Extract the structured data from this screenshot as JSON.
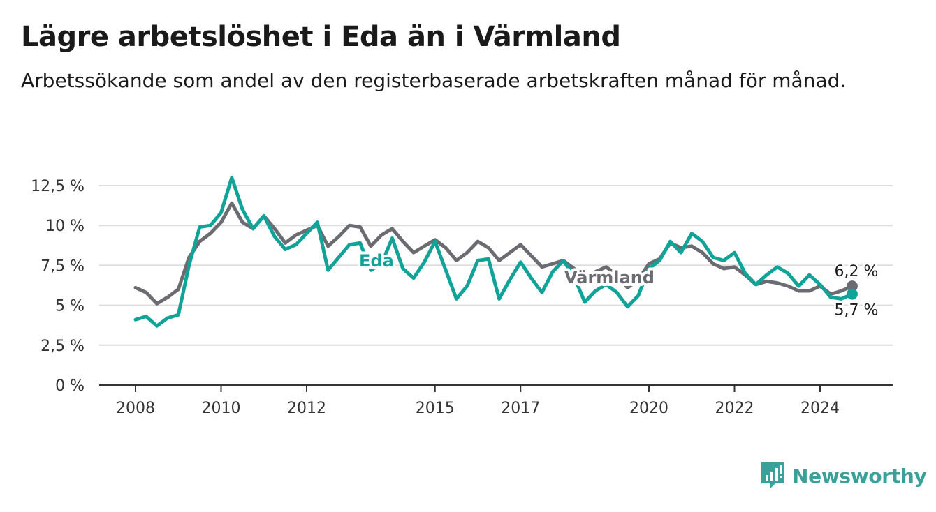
{
  "header": {
    "title": "Lägre arbetslöshet i Eda än i Värmland",
    "subtitle": "Arbetssökande som andel av den registerbaserade arbetskraften månad för månad."
  },
  "brand": {
    "name": "Newsworthy",
    "icon": "newsworthy-logo-icon",
    "color": "#3aa09a"
  },
  "chart_data": {
    "type": "line",
    "title": "Lägre arbetslöshet i Eda än i Värmland",
    "subtitle": "Arbetssökande som andel av den registerbaserade arbetskraften månad för månad.",
    "xlabel": "",
    "ylabel": "",
    "ylim": [
      0,
      12.5
    ],
    "yticks": [
      0,
      2.5,
      5,
      7.5,
      10,
      12.5
    ],
    "ytick_labels": [
      "0 %",
      "2,5 %",
      "5 %",
      "7,5 %",
      "10 %",
      "12,5 %"
    ],
    "xticks": [
      2008,
      2010,
      2012,
      2015,
      2017,
      2020,
      2022,
      2024
    ],
    "xtick_labels": [
      "2008",
      "2010",
      "2012",
      "2015",
      "2017",
      "2020",
      "2022",
      "2024"
    ],
    "xlim": [
      2008,
      2025.75
    ],
    "grid": true,
    "legend": "inline labels",
    "end_labels": {
      "Värmland": "6,2 %",
      "Eda": "5,7 %"
    },
    "series": [
      {
        "name": "Värmland",
        "color": "#6b6b72",
        "x": [
          2008.0,
          2008.25,
          2008.5,
          2008.75,
          2009.0,
          2009.25,
          2009.5,
          2009.75,
          2010.0,
          2010.25,
          2010.5,
          2010.75,
          2011.0,
          2011.25,
          2011.5,
          2011.75,
          2012.0,
          2012.25,
          2012.5,
          2012.75,
          2013.0,
          2013.25,
          2013.5,
          2013.75,
          2014.0,
          2014.25,
          2014.5,
          2014.75,
          2015.0,
          2015.25,
          2015.5,
          2015.75,
          2016.0,
          2016.25,
          2016.5,
          2016.75,
          2017.0,
          2017.25,
          2017.5,
          2017.75,
          2018.0,
          2018.25,
          2018.5,
          2018.75,
          2019.0,
          2019.25,
          2019.5,
          2019.75,
          2020.0,
          2020.25,
          2020.5,
          2020.75,
          2021.0,
          2021.25,
          2021.5,
          2021.75,
          2022.0,
          2022.25,
          2022.5,
          2022.75,
          2023.0,
          2023.25,
          2023.5,
          2023.75,
          2024.0,
          2024.25,
          2024.5,
          2024.75
        ],
        "y": [
          6.1,
          5.8,
          5.1,
          5.5,
          6.0,
          8.0,
          9.0,
          9.5,
          10.2,
          11.4,
          10.2,
          9.8,
          10.6,
          9.8,
          8.9,
          9.4,
          9.7,
          10.0,
          8.7,
          9.3,
          10.0,
          9.9,
          8.7,
          9.4,
          9.8,
          9.0,
          8.3,
          8.7,
          9.1,
          8.6,
          7.8,
          8.3,
          9.0,
          8.6,
          7.8,
          8.3,
          8.8,
          8.1,
          7.4,
          7.6,
          7.8,
          7.3,
          6.7,
          7.1,
          7.4,
          6.9,
          6.1,
          6.6,
          7.6,
          7.9,
          8.9,
          8.6,
          8.7,
          8.3,
          7.6,
          7.3,
          7.4,
          6.9,
          6.3,
          6.5,
          6.4,
          6.2,
          5.9,
          5.9,
          6.2,
          5.7,
          5.9,
          6.2
        ]
      },
      {
        "name": "Eda",
        "color": "#12a398",
        "x": [
          2008.0,
          2008.25,
          2008.5,
          2008.75,
          2009.0,
          2009.25,
          2009.5,
          2009.75,
          2010.0,
          2010.25,
          2010.5,
          2010.75,
          2011.0,
          2011.25,
          2011.5,
          2011.75,
          2012.0,
          2012.25,
          2012.5,
          2012.75,
          2013.0,
          2013.25,
          2013.5,
          2013.75,
          2014.0,
          2014.25,
          2014.5,
          2014.75,
          2015.0,
          2015.25,
          2015.5,
          2015.75,
          2016.0,
          2016.25,
          2016.5,
          2016.75,
          2017.0,
          2017.25,
          2017.5,
          2017.75,
          2018.0,
          2018.25,
          2018.5,
          2018.75,
          2019.0,
          2019.25,
          2019.5,
          2019.75,
          2020.0,
          2020.25,
          2020.5,
          2020.75,
          2021.0,
          2021.25,
          2021.5,
          2021.75,
          2022.0,
          2022.25,
          2022.5,
          2022.75,
          2023.0,
          2023.25,
          2023.5,
          2023.75,
          2024.0,
          2024.25,
          2024.5,
          2024.75
        ],
        "y": [
          4.1,
          4.3,
          3.7,
          4.2,
          4.4,
          7.5,
          9.9,
          10.0,
          10.8,
          13.0,
          11.0,
          9.8,
          10.6,
          9.3,
          8.5,
          8.8,
          9.5,
          10.2,
          7.2,
          8.0,
          8.8,
          8.9,
          7.2,
          7.6,
          9.2,
          7.3,
          6.7,
          7.7,
          9.0,
          7.2,
          5.4,
          6.2,
          7.8,
          7.9,
          5.4,
          6.6,
          7.7,
          6.7,
          5.8,
          7.1,
          7.8,
          6.8,
          5.2,
          5.9,
          6.3,
          5.8,
          4.9,
          5.6,
          7.3,
          7.8,
          9.0,
          8.3,
          9.5,
          9.0,
          8.0,
          7.8,
          8.3,
          7.0,
          6.3,
          6.9,
          7.4,
          7.0,
          6.2,
          6.9,
          6.3,
          5.5,
          5.4,
          5.7
        ]
      }
    ]
  }
}
